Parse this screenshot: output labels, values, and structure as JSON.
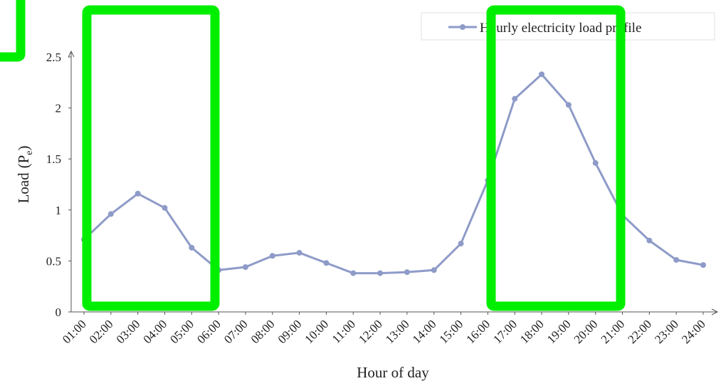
{
  "chart_data": {
    "type": "line",
    "title": "",
    "xlabel": "Hour of day",
    "ylabel": "Load (Pe)",
    "ylabel_main": "Load",
    "ylabel_sub": "e",
    "ylim": [
      0,
      2.5
    ],
    "yticks": [
      "0",
      "0.5",
      "1",
      "1.5",
      "2",
      "2.5"
    ],
    "categories": [
      "01:00",
      "02:00",
      "03:00",
      "04:00",
      "05:00",
      "06:00",
      "07:00",
      "08:00",
      "09:00",
      "10:00",
      "11:00",
      "12:00",
      "13:00",
      "14:00",
      "15:00",
      "16:00",
      "17:00",
      "18:00",
      "19:00",
      "20:00",
      "21:00",
      "22:00",
      "23:00",
      "24:00"
    ],
    "series": [
      {
        "name": "Hourly electricity load profile",
        "color": "#8e9bc8",
        "values": [
          0.71,
          0.96,
          1.16,
          1.02,
          0.63,
          0.41,
          0.44,
          0.55,
          0.58,
          0.48,
          0.38,
          0.38,
          0.39,
          0.41,
          0.67,
          1.29,
          2.09,
          2.33,
          2.03,
          1.46,
          0.95,
          0.7,
          0.51,
          0.46
        ]
      }
    ],
    "grid": false,
    "legend_position": "top-right"
  },
  "highlights": {
    "color": "#00ee00"
  }
}
